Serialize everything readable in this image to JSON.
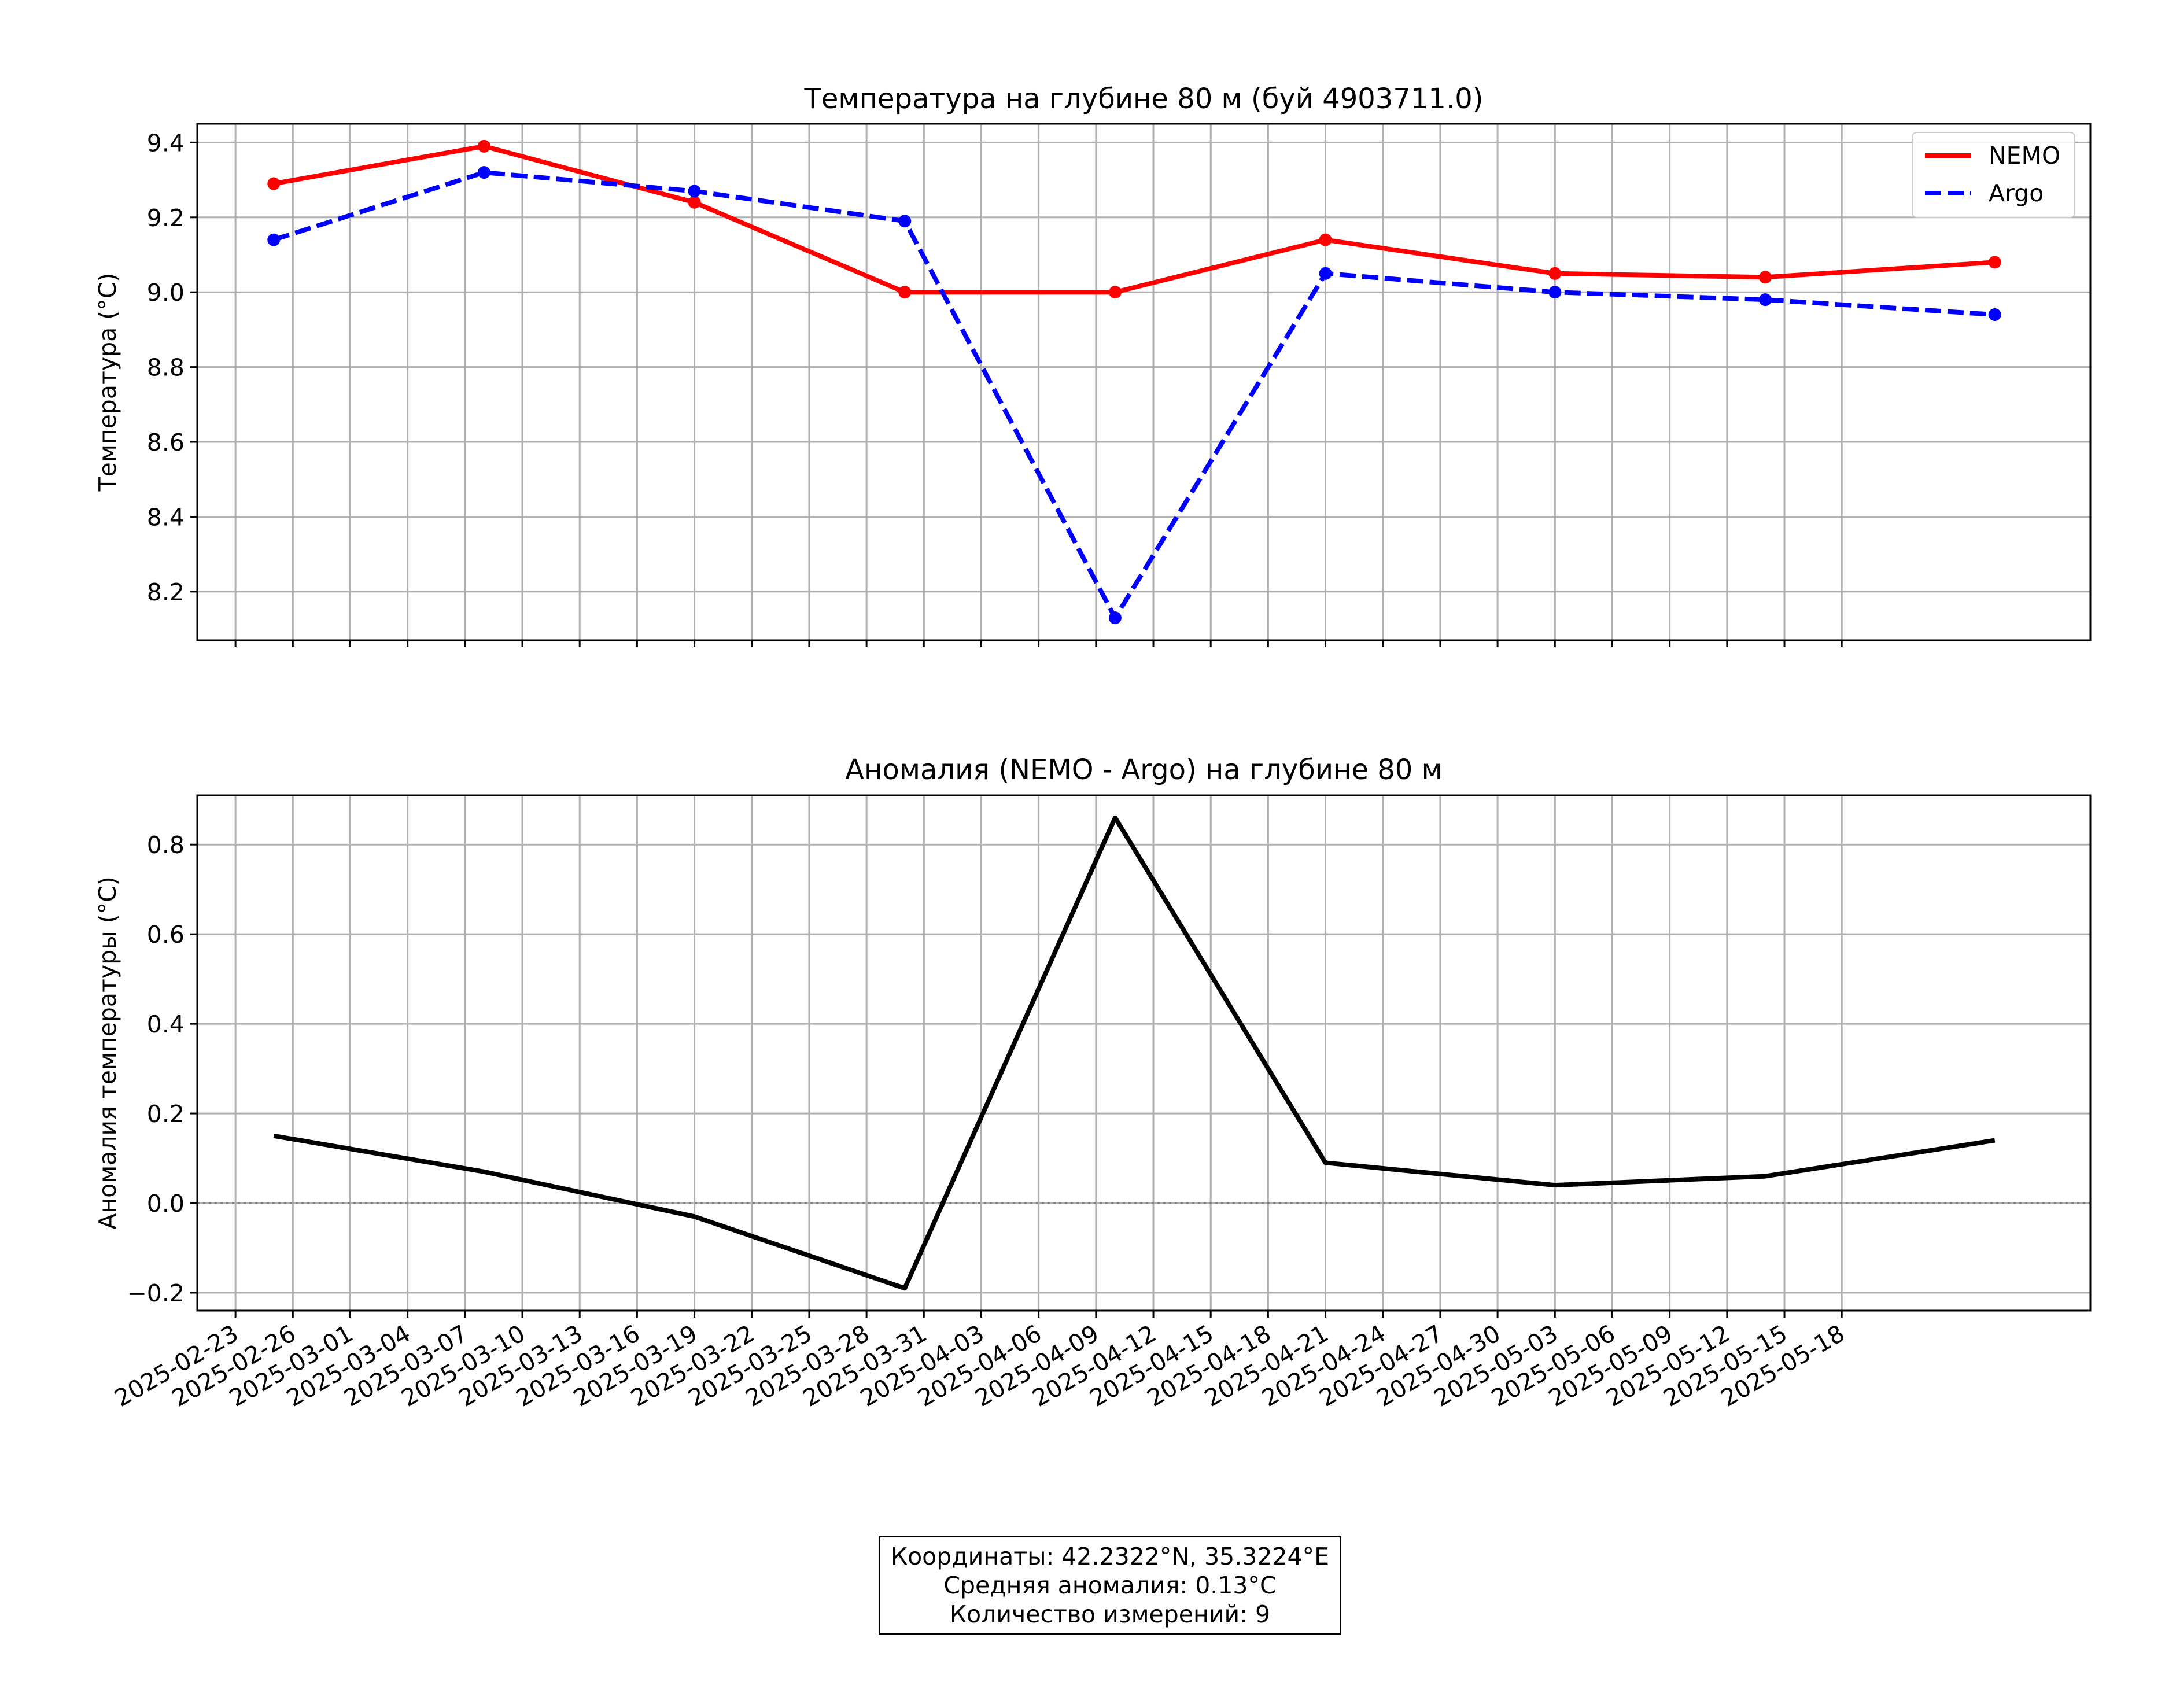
{
  "chart_data": [
    {
      "type": "line",
      "title": "Температура на глубине 80 м (буй 4903711.0)",
      "xlabel": "",
      "ylabel": "Температура (°C)",
      "x": [
        "2025-02-25",
        "2025-03-08",
        "2025-03-19",
        "2025-03-30",
        "2025-04-10",
        "2025-04-21",
        "2025-05-03",
        "2025-05-14",
        "2025-05-26"
      ],
      "series": [
        {
          "name": "NEMO",
          "color": "#ff0000",
          "linestyle": "solid",
          "marker": "circle",
          "values": [
            9.29,
            9.39,
            9.24,
            9.0,
            9.0,
            9.14,
            9.05,
            9.04,
            9.08
          ]
        },
        {
          "name": "Argo",
          "color": "#0000ff",
          "linestyle": "dashed",
          "marker": "circle",
          "values": [
            9.14,
            9.32,
            9.27,
            9.19,
            8.13,
            9.05,
            9.0,
            8.98,
            8.94
          ]
        }
      ],
      "ylim": [
        8.07,
        9.45
      ],
      "yticks": [
        "8.2",
        "8.4",
        "8.6",
        "8.8",
        "9.0",
        "9.2",
        "9.4"
      ],
      "grid": true,
      "legend": "top-right"
    },
    {
      "type": "line",
      "title": "Аномалия (NEMO - Argo) на глубине 80 м",
      "xlabel": "",
      "ylabel": "Аномалия температуры (°C)",
      "x": [
        "2025-02-25",
        "2025-03-08",
        "2025-03-19",
        "2025-03-30",
        "2025-04-10",
        "2025-04-21",
        "2025-05-03",
        "2025-05-14",
        "2025-05-26"
      ],
      "series": [
        {
          "color": "#000000",
          "linestyle": "solid",
          "values": [
            0.15,
            0.07,
            -0.03,
            -0.19,
            0.86,
            0.09,
            0.04,
            0.06,
            0.14
          ]
        }
      ],
      "ylim": [
        -0.24,
        0.91
      ],
      "yticks": [
        "−0.2",
        "0.0",
        "0.2",
        "0.4",
        "0.6",
        "0.8"
      ],
      "reference_line": {
        "y": 0,
        "color": "#808080",
        "linestyle": "dotted"
      },
      "grid": true
    }
  ],
  "x_axis": {
    "range": [
      "2025-02-21",
      "2025-05-31"
    ],
    "ticks": [
      "2025-02-23",
      "2025-02-26",
      "2025-03-01",
      "2025-03-04",
      "2025-03-07",
      "2025-03-10",
      "2025-03-13",
      "2025-03-16",
      "2025-03-19",
      "2025-03-22",
      "2025-03-25",
      "2025-03-28",
      "2025-03-31",
      "2025-04-03",
      "2025-04-06",
      "2025-04-09",
      "2025-04-12",
      "2025-04-15",
      "2025-04-18",
      "2025-04-21",
      "2025-04-24",
      "2025-04-27",
      "2025-04-30",
      "2025-05-03",
      "2025-05-06",
      "2025-05-09",
      "2025-05-12",
      "2025-05-15",
      "2025-05-18"
    ]
  },
  "info": {
    "coords": "Координаты: 42.2322°N, 35.3224°E",
    "mean_anomaly": "Средняя аномалия: 0.13°C",
    "count": "Количество измерений: 9"
  }
}
